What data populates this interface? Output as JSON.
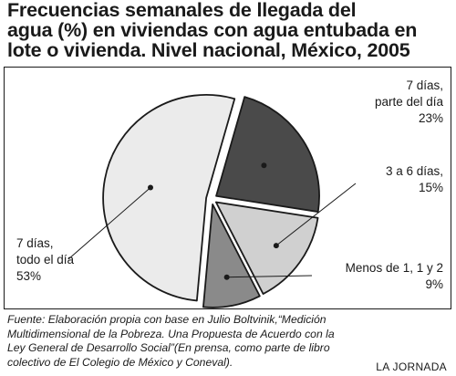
{
  "title_lines": [
    "Frecuencias semanales de llegada del",
    "agua (%) en viviendas con agua entubada en",
    "lote o vivienda. Nivel nacional, México, 2005"
  ],
  "footer_lines": [
    "Fuente: Elaboración propia con base en Julio Boltvinik,“Medición",
    "Multidimensional de la Pobreza. Una Propuesta de Acuerdo con la",
    "Ley General de Desarrollo Social”(En prensa, como parte de libro",
    "colectivo de El Colegio de México y Coneval)."
  ],
  "brand": "LA JORNADA",
  "chart_data": {
    "type": "pie",
    "title": "Frecuencias semanales de llegada del agua (%) en viviendas con agua entubada en lote o vivienda. Nivel nacional, México, 2005",
    "unit": "%",
    "exploded": true,
    "slices": [
      {
        "label_lines": [
          "7 días,",
          "parte del día",
          "23%"
        ],
        "value": 23,
        "color": "#4a4a4a"
      },
      {
        "label_lines": [
          "3 a 6 días,",
          "15%"
        ],
        "value": 15,
        "color": "#d0d0d0"
      },
      {
        "label_lines": [
          "Menos de 1, 1 y 2",
          "9%"
        ],
        "value": 9,
        "color": "#8a8a8a"
      },
      {
        "label_lines": [
          "7 días,",
          "todo el día",
          "53%"
        ],
        "value": 53,
        "color": "#ebebeb"
      }
    ]
  }
}
